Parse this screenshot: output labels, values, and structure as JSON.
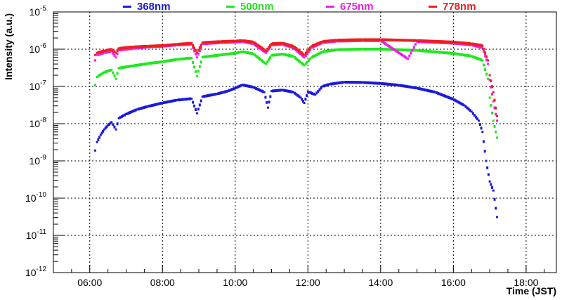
{
  "chart_data": {
    "type": "scatter",
    "xlabel": "Time (JST)",
    "ylabel": "Intensity (a.u.)",
    "x_unit": "hour (JST)",
    "xlim": [
      5.0,
      18.833
    ],
    "ylim": [
      1e-12,
      1e-05
    ],
    "y_scale": "log",
    "grid": true,
    "legend_position": "top",
    "x_ticks": [
      6,
      8,
      10,
      12,
      14,
      16,
      18
    ],
    "x_tick_labels": [
      "06:00",
      "08:00",
      "10:00",
      "12:00",
      "14:00",
      "16:00",
      "18:00"
    ],
    "y_tick_labels": [
      {
        "base": "10",
        "exp": "-12"
      },
      {
        "base": "10",
        "exp": "-11"
      },
      {
        "base": "10",
        "exp": "-10"
      },
      {
        "base": "10",
        "exp": "-9"
      },
      {
        "base": "10",
        "exp": "-8"
      },
      {
        "base": "10",
        "exp": "-7"
      },
      {
        "base": "10",
        "exp": "-6"
      },
      {
        "base": "10",
        "exp": "-5"
      }
    ],
    "series": [
      {
        "name": "368nm",
        "color": "#1a1adc",
        "points": [
          [
            6.15,
            1.9e-09
          ],
          [
            6.2,
            3.2e-09
          ],
          [
            6.3,
            5e-09
          ],
          [
            6.4,
            7e-09
          ],
          [
            6.5,
            9e-09
          ],
          [
            6.6,
            1.1e-08
          ],
          [
            6.72,
            7e-09
          ],
          [
            6.8,
            1.4e-08
          ],
          [
            7.0,
            1.8e-08
          ],
          [
            7.3,
            2.4e-08
          ],
          [
            7.6,
            2.9e-08
          ],
          [
            8.0,
            3.6e-08
          ],
          [
            8.4,
            4.3e-08
          ],
          [
            8.8,
            4.7e-08
          ],
          [
            8.95,
            1.9e-08
          ],
          [
            9.1,
            5.3e-08
          ],
          [
            9.5,
            6.3e-08
          ],
          [
            9.8,
            7.5e-08
          ],
          [
            10.0,
            9e-08
          ],
          [
            10.2,
            1.1e-07
          ],
          [
            10.5,
            9.5e-08
          ],
          [
            10.8,
            7e-08
          ],
          [
            10.9,
            2.7e-08
          ],
          [
            11.0,
            7.5e-08
          ],
          [
            11.3,
            8e-08
          ],
          [
            11.6,
            7e-08
          ],
          [
            11.8,
            5e-08
          ],
          [
            11.9,
            3.6e-08
          ],
          [
            12.0,
            7.2e-08
          ],
          [
            12.2,
            6e-08
          ],
          [
            12.4,
            1e-07
          ],
          [
            12.6,
            1.15e-07
          ],
          [
            13.0,
            1.3e-07
          ],
          [
            13.5,
            1.28e-07
          ],
          [
            14.0,
            1.2e-07
          ],
          [
            14.5,
            1.08e-07
          ],
          [
            15.0,
            9e-08
          ],
          [
            15.5,
            7e-08
          ],
          [
            16.0,
            4.5e-08
          ],
          [
            16.3,
            3.1e-08
          ],
          [
            16.5,
            2.1e-08
          ],
          [
            16.7,
            1.2e-08
          ],
          [
            16.8,
            6e-09
          ],
          [
            16.9,
            1e-09
          ],
          [
            17.0,
            2.8e-10
          ],
          [
            17.1,
            1.6e-10
          ],
          [
            17.2,
            3.1e-11
          ]
        ]
      },
      {
        "name": "500nm",
        "color": "#1ee81e",
        "points": [
          [
            6.15,
            1.1e-07
          ],
          [
            6.2,
            1.8e-07
          ],
          [
            6.4,
            2.4e-07
          ],
          [
            6.6,
            2.8e-07
          ],
          [
            6.72,
            1.6e-07
          ],
          [
            6.8,
            3.1e-07
          ],
          [
            7.2,
            3.6e-07
          ],
          [
            7.6,
            4.1e-07
          ],
          [
            8.0,
            4.6e-07
          ],
          [
            8.4,
            5.3e-07
          ],
          [
            8.8,
            5.8e-07
          ],
          [
            8.95,
            1.9e-07
          ],
          [
            9.1,
            6.1e-07
          ],
          [
            9.6,
            7e-07
          ],
          [
            10.0,
            7.8e-07
          ],
          [
            10.2,
            8.6e-07
          ],
          [
            10.5,
            7.5e-07
          ],
          [
            10.85,
            4e-07
          ],
          [
            11.0,
            6.8e-07
          ],
          [
            11.3,
            7.4e-07
          ],
          [
            11.6,
            6.4e-07
          ],
          [
            11.9,
            3.7e-07
          ],
          [
            12.1,
            6e-07
          ],
          [
            12.4,
            8.5e-07
          ],
          [
            12.8,
            9.7e-07
          ],
          [
            13.5,
            1e-06
          ],
          [
            14.0,
            1e-06
          ],
          [
            15.0,
            9.3e-07
          ],
          [
            16.0,
            7.7e-07
          ],
          [
            16.5,
            6.5e-07
          ],
          [
            16.8,
            5e-07
          ],
          [
            16.95,
            1.6e-07
          ],
          [
            17.0,
            5e-08
          ],
          [
            17.1,
            1.2e-08
          ],
          [
            17.2,
            4.2e-09
          ]
        ]
      },
      {
        "name": "675nm",
        "color": "#ee1ee8",
        "points": [
          [
            6.15,
            5e-07
          ],
          [
            6.2,
            7e-07
          ],
          [
            6.4,
            8e-07
          ],
          [
            6.6,
            8.8e-07
          ],
          [
            6.72,
            6e-07
          ],
          [
            6.8,
            9.5e-07
          ],
          [
            7.2,
            1.05e-06
          ],
          [
            7.6,
            1.15e-06
          ],
          [
            8.0,
            1.2e-06
          ],
          [
            8.4,
            1.3e-06
          ],
          [
            8.8,
            1.35e-06
          ],
          [
            8.95,
            6e-07
          ],
          [
            9.1,
            1.4e-06
          ],
          [
            9.6,
            1.5e-06
          ],
          [
            10.0,
            1.55e-06
          ],
          [
            10.2,
            1.6e-06
          ],
          [
            10.5,
            1.4e-06
          ],
          [
            10.85,
            8e-07
          ],
          [
            11.0,
            1.3e-06
          ],
          [
            11.3,
            1.35e-06
          ],
          [
            11.6,
            1.1e-06
          ],
          [
            11.9,
            6e-07
          ],
          [
            12.1,
            1.1e-06
          ],
          [
            12.4,
            1.5e-06
          ],
          [
            12.8,
            1.65e-06
          ],
          [
            13.5,
            1.7e-06
          ],
          [
            14.0,
            1.7e-06
          ],
          [
            14.75,
            5.5e-07
          ],
          [
            15.0,
            1.6e-06
          ],
          [
            16.0,
            1.45e-06
          ],
          [
            16.5,
            1.3e-06
          ],
          [
            16.8,
            1.1e-06
          ],
          [
            16.95,
            4e-07
          ],
          [
            17.0,
            1.5e-07
          ],
          [
            17.1,
            4e-08
          ],
          [
            17.2,
            1.2e-08
          ]
        ]
      },
      {
        "name": "778nm",
        "color": "#ee1e1e",
        "points": [
          [
            6.15,
            7e-07
          ],
          [
            6.2,
            8e-07
          ],
          [
            6.4,
            9e-07
          ],
          [
            6.6,
            1e-06
          ],
          [
            6.72,
            8e-07
          ],
          [
            6.8,
            1.05e-06
          ],
          [
            7.2,
            1.15e-06
          ],
          [
            7.6,
            1.2e-06
          ],
          [
            8.0,
            1.25e-06
          ],
          [
            8.4,
            1.35e-06
          ],
          [
            8.8,
            1.45e-06
          ],
          [
            8.95,
            8e-07
          ],
          [
            9.1,
            1.5e-06
          ],
          [
            9.6,
            1.6e-06
          ],
          [
            10.0,
            1.65e-06
          ],
          [
            10.2,
            1.7e-06
          ],
          [
            10.5,
            1.55e-06
          ],
          [
            10.85,
            9e-07
          ],
          [
            11.0,
            1.4e-06
          ],
          [
            11.3,
            1.45e-06
          ],
          [
            11.6,
            1.2e-06
          ],
          [
            11.9,
            7e-07
          ],
          [
            12.1,
            1.2e-06
          ],
          [
            12.4,
            1.6e-06
          ],
          [
            12.8,
            1.75e-06
          ],
          [
            13.5,
            1.8e-06
          ],
          [
            14.0,
            1.8e-06
          ],
          [
            15.0,
            1.7e-06
          ],
          [
            16.0,
            1.55e-06
          ],
          [
            16.5,
            1.4e-06
          ],
          [
            16.8,
            1.25e-06
          ],
          [
            16.95,
            5e-07
          ],
          [
            17.0,
            2e-07
          ],
          [
            17.1,
            7e-08
          ],
          [
            17.2,
            1.6e-08
          ]
        ]
      }
    ]
  }
}
